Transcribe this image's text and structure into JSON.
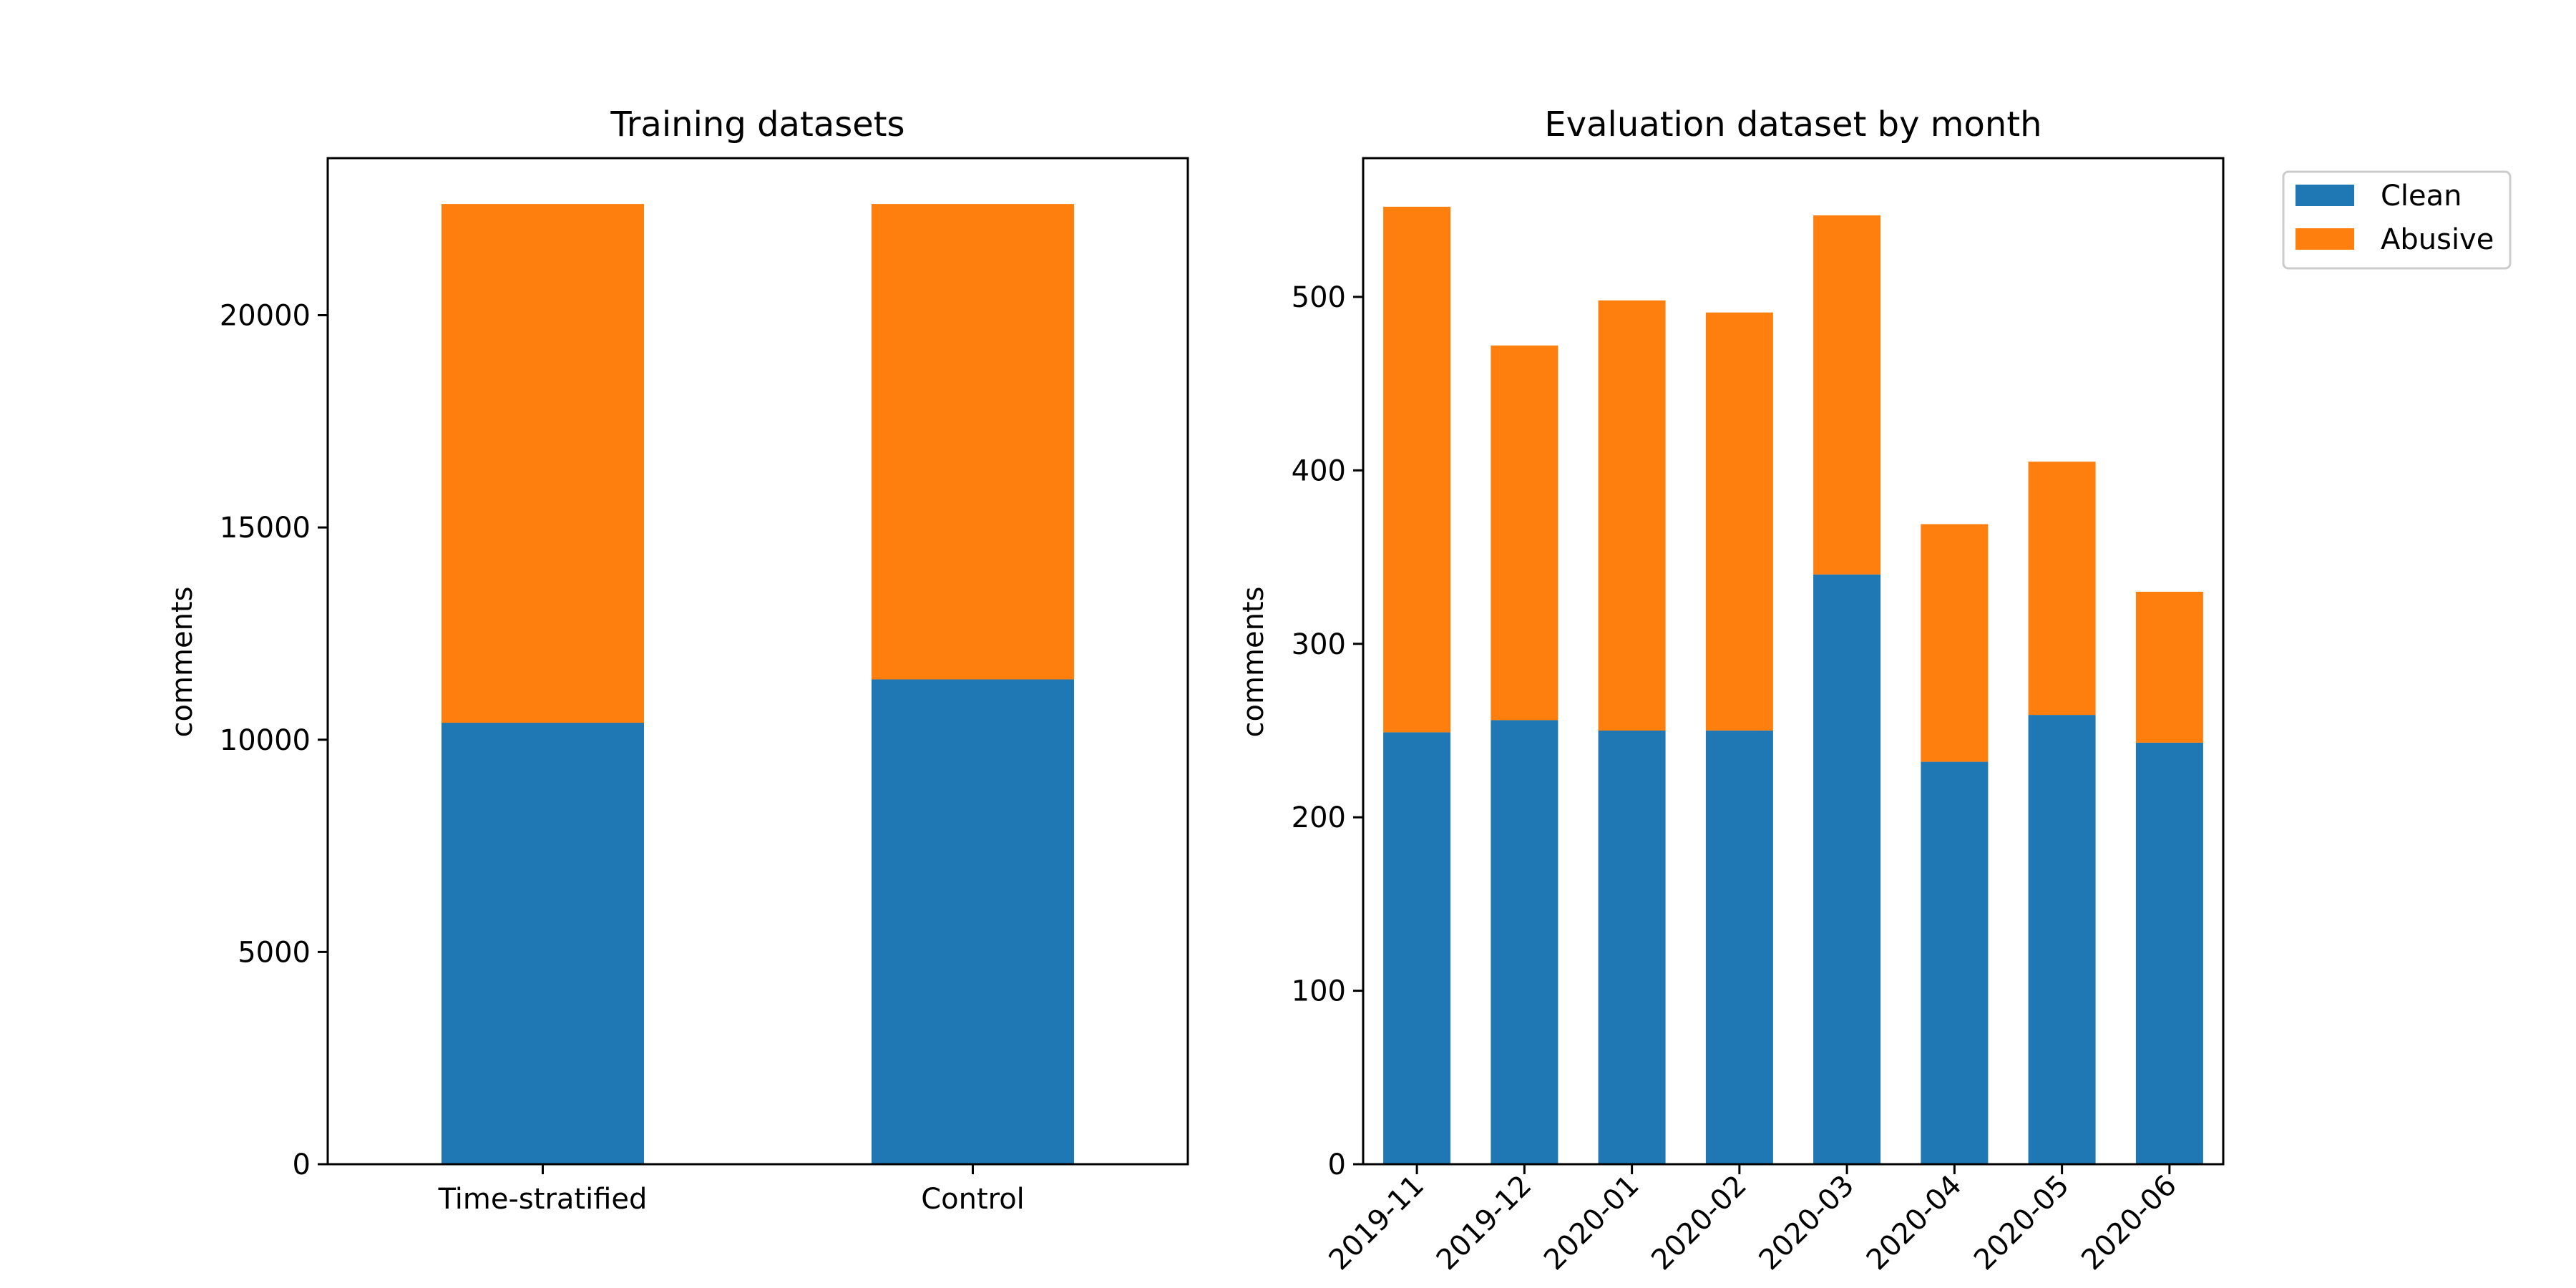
{
  "colors": {
    "clean": "#1f77b4",
    "abusive": "#ff7f0e"
  },
  "legend": {
    "entries": [
      "Clean",
      "Abusive"
    ],
    "placement": "outside-top-right"
  },
  "chart_data": [
    {
      "type": "bar",
      "stacked": true,
      "title": "Training datasets",
      "xlabel": "",
      "ylabel": "comments",
      "categories": [
        "Time-stratified",
        "Control"
      ],
      "series": [
        {
          "name": "Clean",
          "values": [
            10400,
            11420
          ]
        },
        {
          "name": "Abusive",
          "values": [
            12220,
            11200
          ]
        }
      ],
      "ylim": [
        0,
        23700
      ],
      "yticks": [
        0,
        5000,
        10000,
        15000,
        20000
      ],
      "ytick_labels": [
        "0",
        "5000",
        "10000",
        "15000",
        "20000"
      ],
      "grid": false
    },
    {
      "type": "bar",
      "stacked": true,
      "title": "Evaluation dataset by month",
      "xlabel": "",
      "ylabel": "comments",
      "categories": [
        "2019-11",
        "2019-12",
        "2020-01",
        "2020-02",
        "2020-03",
        "2020-04",
        "2020-05",
        "2020-06"
      ],
      "series": [
        {
          "name": "Clean",
          "values": [
            249,
            256,
            250,
            250,
            340,
            232,
            259,
            243
          ]
        },
        {
          "name": "Abusive",
          "values": [
            303,
            216,
            248,
            241,
            207,
            137,
            146,
            87
          ]
        }
      ],
      "ylim": [
        0,
        580
      ],
      "yticks": [
        0,
        100,
        200,
        300,
        400,
        500
      ],
      "ytick_labels": [
        "0",
        "100",
        "200",
        "300",
        "400",
        "500"
      ],
      "grid": false
    }
  ]
}
